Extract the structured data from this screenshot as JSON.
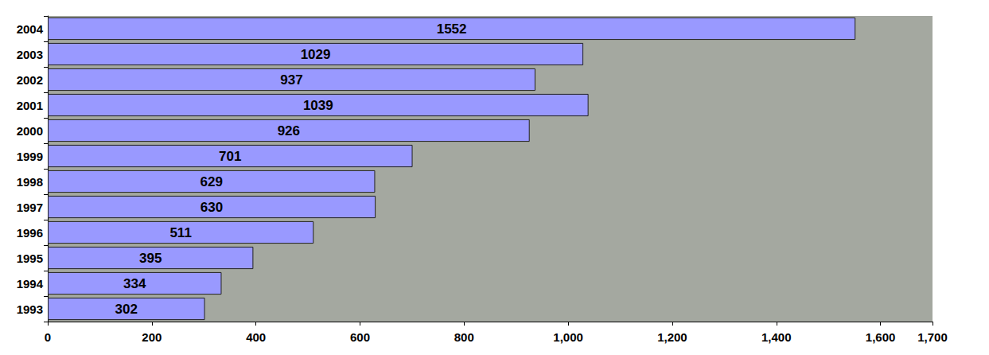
{
  "chart_data": {
    "type": "bar",
    "orientation": "horizontal",
    "categories": [
      "1993",
      "1994",
      "1995",
      "1996",
      "1997",
      "1998",
      "1999",
      "2000",
      "2001",
      "2002",
      "2003",
      "2004"
    ],
    "values": [
      302,
      334,
      395,
      511,
      630,
      629,
      701,
      926,
      1039,
      937,
      1029,
      1552
    ],
    "color": "#9999ff",
    "xlim": [
      0,
      1700
    ],
    "xticks": [
      0,
      200,
      400,
      600,
      800,
      1000,
      1200,
      1400,
      1600
    ],
    "grid": false,
    "data_labels": true
  }
}
